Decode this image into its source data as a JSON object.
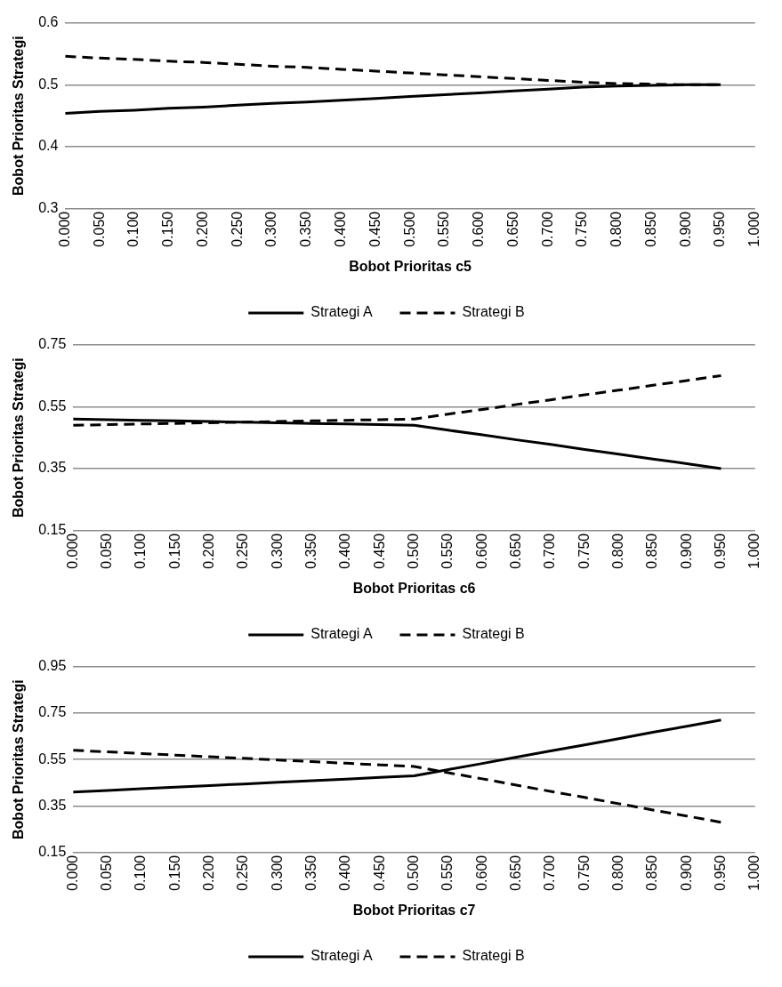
{
  "chart_data": [
    {
      "type": "line",
      "xlabel": "Bobot Prioritas c5",
      "ylabel": "Bobot Prioritas Strategi",
      "categories": [
        "0.000",
        "0.050",
        "0.100",
        "0.150",
        "0.200",
        "0.250",
        "0.300",
        "0.350",
        "0.400",
        "0.450",
        "0.500",
        "0.550",
        "0.600",
        "0.650",
        "0.700",
        "0.750",
        "0.800",
        "0.850",
        "0.900",
        "0.950",
        "1.000"
      ],
      "series": [
        {
          "name": "Strategi A",
          "color": "#000000",
          "line_style": "solid",
          "values": [
            0.454,
            0.457,
            0.459,
            0.462,
            0.464,
            0.467,
            0.47,
            0.472,
            0.475,
            0.478,
            0.481,
            0.484,
            0.487,
            0.49,
            0.493,
            0.496,
            0.498,
            0.499,
            0.5,
            0.5,
            null
          ]
        },
        {
          "name": "Strategi B",
          "color": "#000000",
          "line_style": "dashed",
          "values": [
            0.546,
            0.543,
            0.541,
            0.538,
            0.536,
            0.533,
            0.53,
            0.528,
            0.525,
            0.522,
            0.519,
            0.516,
            0.513,
            0.51,
            0.507,
            0.504,
            0.502,
            0.501,
            0.5,
            0.5,
            null
          ]
        }
      ],
      "ylim": [
        0.3,
        0.6
      ],
      "yticks": [
        0.3,
        0.4,
        0.5,
        0.6
      ],
      "grid": "y",
      "legend": "bottom",
      "marker": "none"
    },
    {
      "type": "line",
      "xlabel": "Bobot Prioritas c6",
      "ylabel": "Bobot Prioritas Strategi",
      "categories": [
        "0.000",
        "0.050",
        "0.100",
        "0.150",
        "0.200",
        "0.250",
        "0.300",
        "0.350",
        "0.400",
        "0.450",
        "0.500",
        "0.550",
        "0.600",
        "0.650",
        "0.700",
        "0.750",
        "0.800",
        "0.850",
        "0.900",
        "0.950",
        "1.000"
      ],
      "series": [
        {
          "name": "Strategi A",
          "color": "#000000",
          "line_style": "solid",
          "values": [
            0.51,
            0.508,
            0.506,
            0.504,
            0.502,
            0.5,
            0.498,
            0.496,
            0.494,
            0.492,
            0.49,
            0.474,
            0.459,
            0.443,
            0.428,
            0.412,
            0.397,
            0.381,
            0.366,
            0.35,
            null
          ]
        },
        {
          "name": "Strategi B",
          "color": "#000000",
          "line_style": "dashed",
          "values": [
            0.49,
            0.492,
            0.494,
            0.496,
            0.498,
            0.5,
            0.502,
            0.504,
            0.506,
            0.508,
            0.51,
            0.526,
            0.541,
            0.557,
            0.572,
            0.588,
            0.603,
            0.619,
            0.634,
            0.65,
            null
          ]
        }
      ],
      "ylim": [
        0.15,
        0.75
      ],
      "yticks": [
        0.15,
        0.35,
        0.55,
        0.75
      ],
      "grid": "y",
      "legend": "bottom",
      "marker": "none"
    },
    {
      "type": "line",
      "xlabel": "Bobot Prioritas c7",
      "ylabel": "Bobot Prioritas Strategi",
      "categories": [
        "0.000",
        "0.050",
        "0.100",
        "0.150",
        "0.200",
        "0.250",
        "0.300",
        "0.350",
        "0.400",
        "0.450",
        "0.500",
        "0.550",
        "0.600",
        "0.650",
        "0.700",
        "0.750",
        "0.800",
        "0.850",
        "0.900",
        "0.950",
        "1.000"
      ],
      "series": [
        {
          "name": "Strategi A",
          "color": "#000000",
          "line_style": "solid",
          "values": [
            0.41,
            0.417,
            0.424,
            0.431,
            0.438,
            0.445,
            0.452,
            0.459,
            0.466,
            0.473,
            0.48,
            0.507,
            0.533,
            0.56,
            0.587,
            0.613,
            0.64,
            0.667,
            0.693,
            0.72,
            null
          ]
        },
        {
          "name": "Strategi B",
          "color": "#000000",
          "line_style": "dashed",
          "values": [
            0.59,
            0.583,
            0.576,
            0.569,
            0.562,
            0.555,
            0.548,
            0.541,
            0.534,
            0.527,
            0.52,
            0.493,
            0.467,
            0.44,
            0.413,
            0.387,
            0.36,
            0.333,
            0.307,
            0.28,
            null
          ]
        }
      ],
      "ylim": [
        0.15,
        0.95
      ],
      "yticks": [
        0.15,
        0.35,
        0.55,
        0.75,
        0.95
      ],
      "grid": "y",
      "legend": "bottom",
      "marker": "none"
    }
  ]
}
